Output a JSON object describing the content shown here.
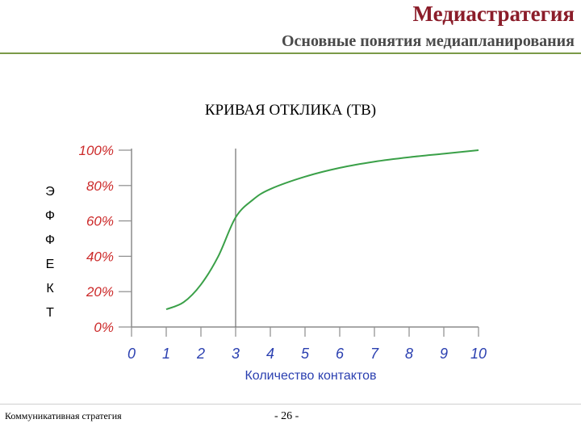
{
  "header": {
    "title": "Медиастратегия",
    "subtitle": "Основные понятия медиапланирования"
  },
  "footer": {
    "left": "Коммуникативная стратегия",
    "page": "- 26 -"
  },
  "chart_data": {
    "type": "line",
    "title": "КРИВАЯ ОТКЛИКА (ТВ)",
    "xlabel": "Количество контактов",
    "ylabel_letters": [
      "Э",
      "Ф",
      "Ф",
      "Е",
      "К",
      "Т"
    ],
    "x_ticks": [
      "0",
      "1",
      "2",
      "3",
      "4",
      "5",
      "6",
      "7",
      "8",
      "9",
      "10"
    ],
    "y_ticks": [
      "0%",
      "20%",
      "40%",
      "60%",
      "80%",
      "100%"
    ],
    "xlim": [
      0,
      10
    ],
    "ylim": [
      0,
      100
    ],
    "reference_line_x": 3,
    "grid": false,
    "series": [
      {
        "color": "#3aa048",
        "x": [
          1,
          1.5,
          2,
          2.5,
          3,
          3.5,
          4,
          5,
          6,
          7,
          8,
          9,
          10
        ],
        "y": [
          10,
          14,
          24,
          40,
          62,
          72,
          78,
          85,
          90,
          93.5,
          96,
          98,
          100
        ]
      }
    ],
    "colors": {
      "tick_label": "#cc2a2a",
      "x_label": "#2a3fb0",
      "axis": "#8c8c8c"
    }
  }
}
